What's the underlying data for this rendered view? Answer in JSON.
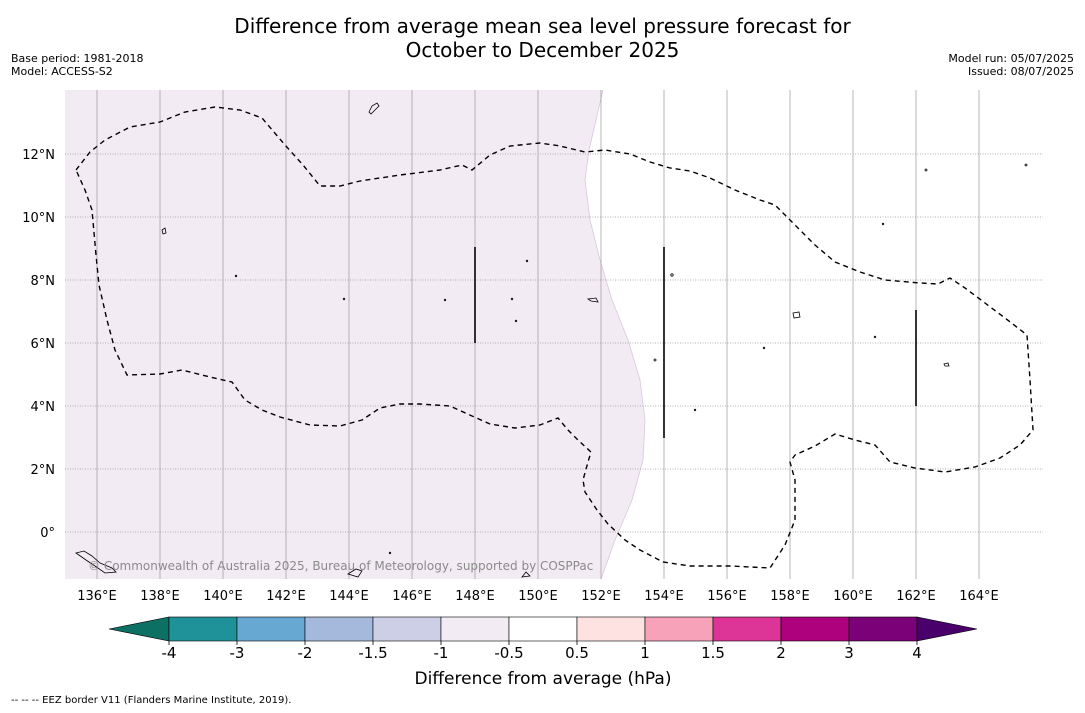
{
  "header": {
    "title_line1": "Difference from average mean sea level pressure forecast for",
    "title_line2": "October to December 2025",
    "base_period": "Base period: 1981-2018",
    "model": "Model: ACCESS-S2",
    "model_run": "Model run: 05/07/2025",
    "issued": "Issued: 08/07/2025"
  },
  "map": {
    "lon_ticks": [
      "136°E",
      "138°E",
      "140°E",
      "142°E",
      "144°E",
      "146°E",
      "148°E",
      "150°E",
      "152°E",
      "154°E",
      "156°E",
      "158°E",
      "160°E",
      "162°E",
      "164°E"
    ],
    "lat_ticks": [
      "12°N",
      "10°N",
      "8°N",
      "6°N",
      "4°N",
      "2°N",
      "0°"
    ],
    "copyright": "© Commonwealth of Australia 2025, Bureau of Meteorology, supported by COSPPac",
    "field": [
      {
        "region": "west of ~152°E",
        "category": "-1 to -0.5",
        "color": "#f3ebf4"
      },
      {
        "region": "east of ~152°E",
        "category": "-0.5 to 0.5",
        "color": "#ffffff"
      }
    ]
  },
  "colorbar": {
    "title": "Difference from average (hPa)",
    "tick_labels": [
      "-4",
      "-3",
      "-2",
      "-1.5",
      "-1",
      "-0.5",
      "0.5",
      "1",
      "1.5",
      "2",
      "3",
      "4"
    ],
    "colors": [
      "#0d7064",
      "#1f9199",
      "#66a8d2",
      "#a5b9dc",
      "#cdcfe6",
      "#f3ebf4",
      "#ffffff",
      "#fde2e1",
      "#f7a2b8",
      "#dd3497",
      "#ae017e",
      "#7a0177",
      "#49006a"
    ]
  },
  "footer": {
    "legend_text": "--  --  -- EEZ border V11 (Flanders Marine Institute, 2019)."
  }
}
